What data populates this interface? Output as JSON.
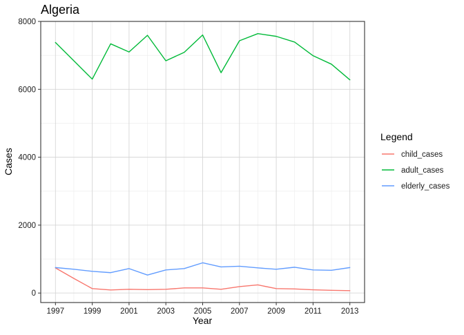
{
  "chart_data": {
    "type": "line",
    "title": "Algeria",
    "xlabel": "Year",
    "ylabel": "Cases",
    "x": [
      1997,
      1998,
      1999,
      2000,
      2001,
      2002,
      2003,
      2004,
      2005,
      2006,
      2007,
      2008,
      2009,
      2010,
      2011,
      2012,
      2013
    ],
    "x_ticks": [
      "1997",
      "1999",
      "2001",
      "2003",
      "2005",
      "2007",
      "2009",
      "2011",
      "2013"
    ],
    "y_ticks": [
      "0",
      "2000",
      "4000",
      "6000",
      "8000"
    ],
    "xlim": [
      1996.2,
      2013.8
    ],
    "ylim": [
      -280,
      8000
    ],
    "grid": true,
    "legend": {
      "title": "Legend",
      "position": "right"
    },
    "series": [
      {
        "name": "child_cases",
        "color": "#F8766D",
        "values": [
          740,
          430,
          130,
          90,
          110,
          100,
          110,
          150,
          150,
          110,
          190,
          240,
          130,
          120,
          95,
          80,
          70
        ]
      },
      {
        "name": "adult_cases",
        "color": "#00BA38",
        "values": [
          7380,
          6840,
          6300,
          7340,
          7100,
          7590,
          6840,
          7090,
          7600,
          6490,
          7430,
          7640,
          7560,
          7390,
          6990,
          6740,
          6280
        ]
      },
      {
        "name": "elderly_cases",
        "color": "#619CFF",
        "values": [
          750,
          700,
          640,
          600,
          720,
          530,
          680,
          720,
          890,
          770,
          790,
          740,
          700,
          760,
          680,
          670,
          750
        ]
      }
    ]
  }
}
